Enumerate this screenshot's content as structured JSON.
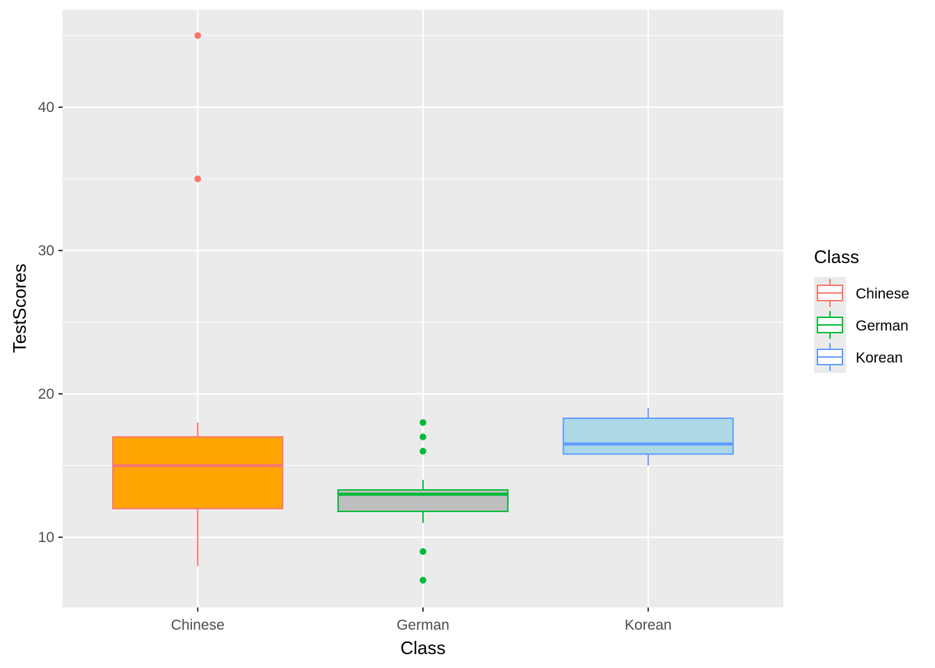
{
  "chart_data": {
    "type": "boxplot",
    "xlabel": "Class",
    "ylabel": "TestScores",
    "ylim": [
      5.1,
      46.8
    ],
    "y_ticks": [
      10,
      20,
      30,
      40
    ],
    "categories": [
      "Chinese",
      "German",
      "Korean"
    ],
    "grid": true,
    "legend": {
      "title": "Class",
      "placement": "right",
      "entries": [
        "Chinese",
        "German",
        "Korean"
      ]
    },
    "boxes": [
      {
        "category": "Chinese",
        "lower_whisker": 8,
        "q1": 12,
        "median": 15,
        "q3": 17,
        "upper_whisker": 18,
        "outliers": [
          35,
          45
        ],
        "fill": "#FFA500",
        "stroke": "#F8766D"
      },
      {
        "category": "German",
        "lower_whisker": 11,
        "q1": 11.8,
        "median": 13,
        "q3": 13.3,
        "upper_whisker": 14,
        "outliers": [
          7,
          9,
          16,
          17,
          18
        ],
        "fill": "#BEBEBE",
        "stroke": "#00BA38"
      },
      {
        "category": "Korean",
        "lower_whisker": 15,
        "q1": 15.8,
        "median": 16.5,
        "q3": 18.3,
        "upper_whisker": 19,
        "outliers": [],
        "fill": "#ADD8E6",
        "stroke": "#619CFF"
      }
    ],
    "colors": {
      "panel_background": "#EBEBEB",
      "grid_line": "#FFFFFF",
      "Chinese": "#F8766D",
      "German": "#00BA38",
      "Korean": "#619CFF"
    }
  }
}
